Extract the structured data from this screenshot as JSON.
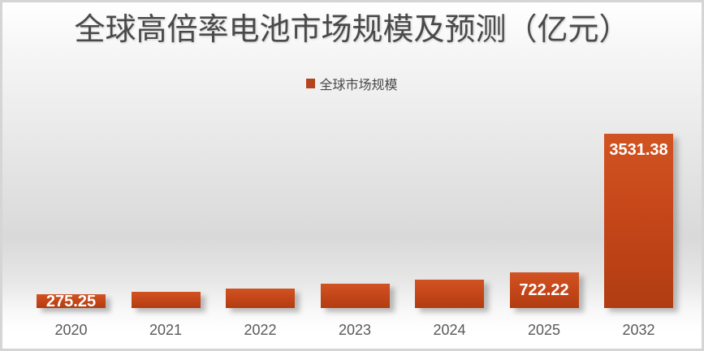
{
  "chart": {
    "title": "全球高倍率电池市场规模及预测（亿元）",
    "legend_label": "全球市场规模"
  },
  "colors": {
    "bar_gradient_top": "#d15322",
    "bar_gradient_mid": "#c64719",
    "bar_gradient_bottom": "#b03d12",
    "legend_swatch": "#b5431c",
    "title_text": "#4a4a4a",
    "axis_label_text": "#595959",
    "data_label_text": "#ffffff"
  },
  "chart_data": {
    "type": "bar",
    "title": "全球高倍率电池市场规模及预测（亿元）",
    "legend": [
      "全球市场规模"
    ],
    "legend_position": "top-center",
    "grid": false,
    "axes_visible": false,
    "ylim": [
      0,
      3700
    ],
    "categories": [
      "2020",
      "2021",
      "2022",
      "2023",
      "2024",
      "2025",
      "2032"
    ],
    "series": [
      {
        "name": "全球市场规模",
        "values": [
          275.25,
          330,
          400,
          495,
          575,
          722.22,
          3531.38
        ]
      }
    ],
    "points": [
      {
        "category": "2020",
        "value": 275.25,
        "label": "275.25",
        "label_pos": "center"
      },
      {
        "category": "2021",
        "value": 330,
        "label": null
      },
      {
        "category": "2022",
        "value": 400,
        "label": null
      },
      {
        "category": "2023",
        "value": 495,
        "label": null
      },
      {
        "category": "2024",
        "value": 575,
        "label": null
      },
      {
        "category": "2025",
        "value": 722.22,
        "label": "722.22",
        "label_pos": "center"
      },
      {
        "category": "2032",
        "value": 3531.38,
        "label": "3531.38",
        "label_pos": "inside-top"
      }
    ]
  }
}
